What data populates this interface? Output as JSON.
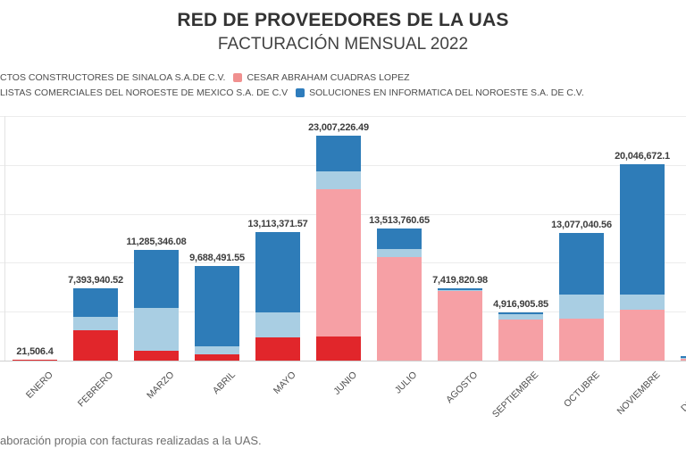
{
  "title": "RED DE PROVEEDORES DE LA UAS",
  "subtitle": "FACTURACIÓN MENSUAL 2022",
  "footer_note": "aboración propia con facturas realizadas a la UAS.",
  "colors": {
    "red": "#e1262b",
    "pink": "#f6a0a5",
    "light_blue": "#a9cee3",
    "dark_blue": "#2e7cb8",
    "legend_pink_swatch": "#f0908f",
    "legend_blue_swatch": "#2e7cbc",
    "gridline": "#ececec",
    "axis_line": "#cfcfcf"
  },
  "legend": {
    "rows": [
      {
        "items": [
          {
            "swatch": null,
            "swatch_name": "red-swatch-offscreen",
            "label": "CTOS CONSTRUCTORES DE SINALOA S.A.DE C.V."
          },
          {
            "swatch": "#f0908f",
            "swatch_name": "pink-swatch",
            "label": "CESAR ABRAHAM CUADRAS LOPEZ"
          }
        ]
      },
      {
        "items": [
          {
            "swatch": null,
            "swatch_name": "lightblue-swatch-offscreen",
            "label": "LISTAS COMERCIALES DEL NOROESTE DE MEXICO S.A. DE C.V"
          },
          {
            "swatch": "#2e7cbc",
            "swatch_name": "blue-swatch",
            "label": "SOLUCIONES EN INFORMATICA DEL NOROESTE S.A. DE C.V."
          }
        ]
      }
    ]
  },
  "chart_data": {
    "type": "bar",
    "stacked": true,
    "title": "RED DE PROVEEDORES DE LA UAS",
    "subtitle": "FACTURACIÓN MENSUAL 2022",
    "categories": [
      "ENERO",
      "FEBRERO",
      "MARZO",
      "ABRIL",
      "MAYO",
      "JUNIO",
      "JULIO",
      "AGOSTO",
      "SEPTIEMBRE",
      "OCTUBRE",
      "NOVIEMBRE",
      "DICIEMBRE"
    ],
    "totals_text": [
      "21,506.4",
      "7,393,940.52",
      "11,285,346.08",
      "9,688,491.55",
      "13,113,371.57",
      "23,007,226.49",
      "13,513,760.65",
      "7,419,820.98",
      "4,916,905.85",
      "13,077,040.56",
      "20,046,672.1",
      ""
    ],
    "totals": [
      21506.4,
      7393940.52,
      11285346.08,
      9688491.55,
      13113371.57,
      23007226.49,
      13513760.65,
      7419820.98,
      4916905.85,
      13077040.56,
      20046672.1,
      null
    ],
    "series": [
      {
        "name": "CTOS CONSTRUCTORES DE SINALOA S.A.DE C.V.",
        "color_key": "red",
        "values": [
          21506,
          3103000,
          1004000,
          639000,
          2373000,
          2465000,
          0,
          0,
          0,
          0,
          0,
          0
        ]
      },
      {
        "name": "CESAR ABRAHAM CUADRAS LOPEZ",
        "color_key": "pink",
        "values": [
          0,
          0,
          0,
          0,
          0,
          15062000,
          10600000,
          7120000,
          4200000,
          4290000,
          5200000,
          180000
        ]
      },
      {
        "name": "LISTAS COMERCIALES DEL NOROESTE DE MEXICO S.A. DE C.V",
        "color_key": "light_blue",
        "values": [
          0,
          1369000,
          4381000,
          821000,
          2556000,
          1825000,
          821000,
          90000,
          550000,
          2465000,
          1551000,
          90000
        ]
      },
      {
        "name": "SOLUCIONES EN INFORMATICA DEL NOROESTE S.A. DE C.V.",
        "color_key": "dark_blue",
        "values": [
          0,
          2921000,
          5900000,
          8228000,
          8184000,
          3655000,
          2092000,
          210000,
          167000,
          6322000,
          13296000,
          180000
        ]
      }
    ],
    "ylim": [
      0,
      25000000
    ],
    "gridline_step": 5000000,
    "grid": true,
    "y_axis_labels_visible": false,
    "legend_position": "top-left",
    "x_label_rotation": -45,
    "note": "Totals are the printed data labels; per-series values estimated from segment pixel heights."
  }
}
